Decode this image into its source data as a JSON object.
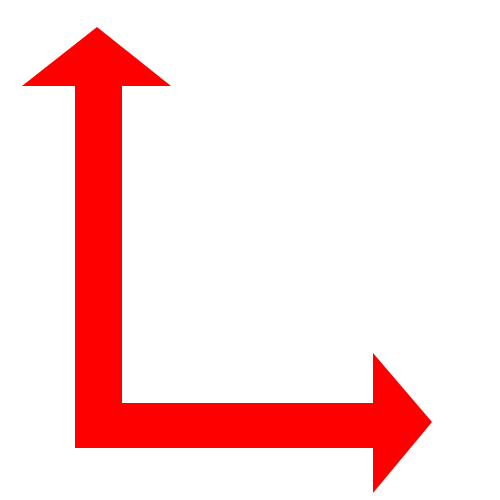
{
  "shape": {
    "name": "double-headed-bent-arrow",
    "fill_color": "#ff0000",
    "background_color": "#ffffff",
    "directions": [
      "up",
      "right"
    ]
  }
}
